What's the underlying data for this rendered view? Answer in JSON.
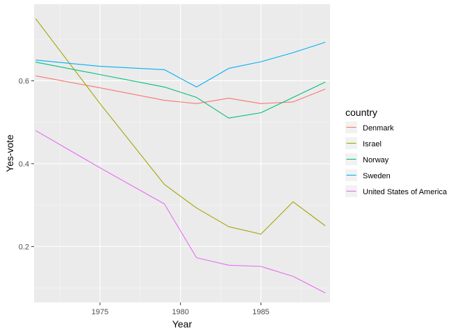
{
  "chart_data": {
    "type": "line",
    "xlabel": "Year",
    "ylabel": "Yes-vote",
    "xlim": [
      1970.9,
      1989.3
    ],
    "ylim": [
      0.065,
      0.785
    ],
    "x_ticks": [
      1975,
      1980,
      1985
    ],
    "x_tick_labels": [
      "1975",
      "1980",
      "1985"
    ],
    "y_ticks": [
      0.2,
      0.4,
      0.6
    ],
    "y_tick_labels": [
      "0.2",
      "0.4",
      "0.6"
    ],
    "grid": true,
    "background": "#EBEBEB",
    "legend": {
      "title": "country",
      "position": "right"
    },
    "series": [
      {
        "name": "Denmark",
        "color": "#F8766D",
        "x": [
          1971,
          1975,
          1979,
          1981,
          1983,
          1985,
          1987,
          1989
        ],
        "y": [
          0.612,
          0.583,
          0.553,
          0.545,
          0.558,
          0.545,
          0.549,
          0.58
        ]
      },
      {
        "name": "Israel",
        "color": "#A3A500",
        "x": [
          1971,
          1975,
          1979,
          1981,
          1983,
          1985,
          1987,
          1989
        ],
        "y": [
          0.75,
          0.545,
          0.35,
          0.293,
          0.248,
          0.23,
          0.308,
          0.25
        ]
      },
      {
        "name": "Norway",
        "color": "#00BF7D",
        "x": [
          1971,
          1975,
          1979,
          1981,
          1983,
          1985,
          1987,
          1989
        ],
        "y": [
          0.645,
          0.615,
          0.585,
          0.56,
          0.51,
          0.523,
          0.56,
          0.597
        ]
      },
      {
        "name": "Sweden",
        "color": "#00B0F6",
        "x": [
          1971,
          1975,
          1979,
          1981,
          1983,
          1985,
          1987,
          1989
        ],
        "y": [
          0.65,
          0.635,
          0.627,
          0.585,
          0.63,
          0.646,
          0.668,
          0.693
        ]
      },
      {
        "name": "United States of America",
        "color": "#E76BF3",
        "x": [
          1971,
          1975,
          1979,
          1981,
          1983,
          1985,
          1987,
          1989
        ],
        "y": [
          0.48,
          0.39,
          0.303,
          0.173,
          0.155,
          0.152,
          0.128,
          0.088
        ]
      }
    ]
  }
}
